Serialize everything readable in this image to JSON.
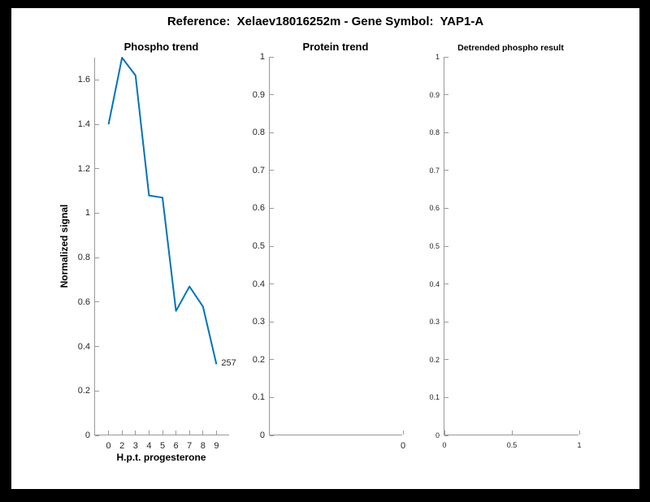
{
  "figure_title": "Reference:  Xelaev18016252m - Gene Symbol:  YAP1-A",
  "colors": {
    "window_background": "#000000",
    "figure_background": "#ffffff",
    "line": "#0072BD",
    "axis_spine": "#999999",
    "tick_label": "#262626"
  },
  "chart_data": [
    {
      "id": "phospho",
      "type": "line",
      "title": "Phospho trend",
      "xlabel": "H.p.t. progesterone",
      "ylabel": "Normalized signal",
      "xlim": [
        0,
        10
      ],
      "ylim": [
        0,
        1.7
      ],
      "grid": false,
      "legend": null,
      "x_ticks": [
        {
          "pos": 1,
          "label": "0"
        },
        {
          "pos": 2,
          "label": "2"
        },
        {
          "pos": 3,
          "label": "3"
        },
        {
          "pos": 4,
          "label": "4"
        },
        {
          "pos": 5,
          "label": "5"
        },
        {
          "pos": 6,
          "label": "6"
        },
        {
          "pos": 7,
          "label": "7"
        },
        {
          "pos": 8,
          "label": "8"
        },
        {
          "pos": 9,
          "label": "9"
        }
      ],
      "y_tick_values": [
        0,
        0.2,
        0.4,
        0.6,
        0.8,
        1,
        1.2,
        1.4,
        1.6
      ],
      "y_tick_labels": [
        "0",
        "0.2",
        "0.4",
        "0.6",
        "0.8",
        "1",
        "1.2",
        "1.4",
        "1.6"
      ],
      "series": {
        "name": "phospho-signal",
        "x": [
          1,
          2,
          3,
          4,
          5,
          6,
          7,
          8,
          9
        ],
        "x_hour_labels": [
          "0",
          "2",
          "3",
          "4",
          "5",
          "6",
          "7",
          "8",
          "9"
        ],
        "values": [
          1.4,
          1.7,
          1.62,
          1.08,
          1.07,
          0.56,
          0.67,
          0.58,
          0.32
        ],
        "color": "#0072BD"
      },
      "annotation": {
        "text": "257",
        "x": 9,
        "y": 0.32
      }
    },
    {
      "id": "protein",
      "type": "line",
      "title": "Protein trend",
      "xlabel": "",
      "ylabel": "",
      "xlim": [
        -1,
        0
      ],
      "ylim": [
        0,
        1
      ],
      "grid": false,
      "legend": null,
      "x_ticks": [
        {
          "pos": 0,
          "label": "0"
        }
      ],
      "y_tick_values": [
        0,
        0.1,
        0.2,
        0.3,
        0.4,
        0.5,
        0.6,
        0.7,
        0.8,
        0.9,
        1
      ],
      "y_tick_labels": [
        "0",
        "0.1",
        "0.2",
        "0.3",
        "0.4",
        "0.5",
        "0.6",
        "0.7",
        "0.8",
        "0.9",
        "1"
      ],
      "series": {
        "name": "protein-signal",
        "x": [],
        "values": [],
        "color": "#0072BD"
      },
      "annotation": null
    },
    {
      "id": "detrended",
      "type": "line",
      "title": "Detrended phospho result",
      "xlabel": "",
      "ylabel": "",
      "xlim": [
        0,
        1
      ],
      "ylim": [
        0,
        1
      ],
      "grid": false,
      "legend": null,
      "x_ticks": [
        {
          "pos": 0,
          "label": "0"
        },
        {
          "pos": 0.5,
          "label": "0.5"
        },
        {
          "pos": 1,
          "label": "1"
        }
      ],
      "y_tick_values": [
        0,
        0.1,
        0.2,
        0.3,
        0.4,
        0.5,
        0.6,
        0.7,
        0.8,
        0.9,
        1
      ],
      "y_tick_labels": [
        "0",
        "0.1",
        "0.2",
        "0.3",
        "0.4",
        "0.5",
        "0.6",
        "0.7",
        "0.8",
        "0.9",
        "1"
      ],
      "series": {
        "name": "detrended-signal",
        "x": [],
        "values": [],
        "color": "#0072BD"
      },
      "annotation": null
    }
  ]
}
